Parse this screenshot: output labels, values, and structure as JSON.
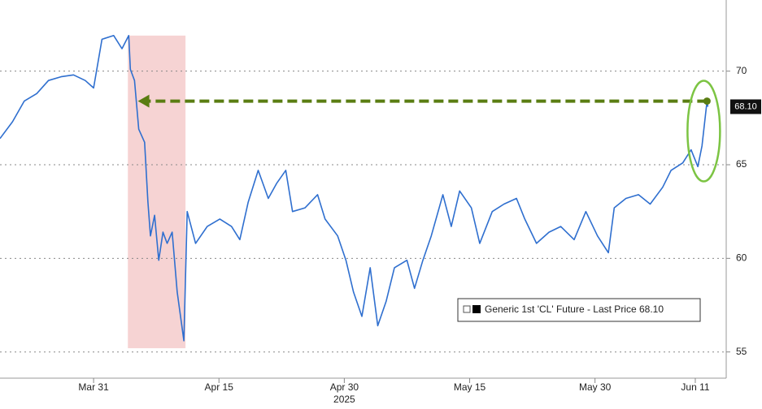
{
  "chart_data": {
    "type": "line",
    "x": [
      -11.2,
      -9.7,
      -8.3,
      -6.8,
      -5.4,
      -3.9,
      -2.4,
      -1.0,
      0,
      1.0,
      2.4,
      3.4,
      4.2,
      4.4,
      4.9,
      5.4,
      6.1,
      6.5,
      6.8,
      7.3,
      7.8,
      8.3,
      8.8,
      9.4,
      10.0,
      10.4,
      10.8,
      11.2,
      12.2,
      13.6,
      15.1,
      16.5,
      17.5,
      18.5,
      19.7,
      20.9,
      21.9,
      23.0,
      23.8,
      25.3,
      26.8,
      27.7,
      29.2,
      30.2,
      31.1,
      32.1,
      33.1,
      34.0,
      35.0,
      36.0,
      37.5,
      38.4,
      39.4,
      40.4,
      41.8,
      42.8,
      43.8,
      45.2,
      46.2,
      47.7,
      49.1,
      50.6,
      51.6,
      53.0,
      54.5,
      55.9,
      57.5,
      58.9,
      60.3,
      61.6,
      62.3,
      63.7,
      65.2,
      66.6,
      68.1,
      69.1,
      70.5,
      71.5,
      72.3,
      72.8,
      73.4,
      73.5
    ],
    "series": [
      {
        "name": "Generic 1st 'CL' Future - Last Price 68.10",
        "color": "#2f6fcf",
        "values": [
          66.4,
          67.3,
          68.4,
          68.8,
          69.5,
          69.7,
          69.8,
          69.5,
          69.1,
          71.7,
          71.9,
          71.2,
          71.9,
          70.1,
          69.5,
          66.9,
          66.2,
          63.0,
          61.2,
          62.3,
          59.9,
          61.4,
          60.8,
          61.4,
          58.2,
          56.9,
          55.6,
          62.5,
          60.8,
          61.7,
          62.1,
          61.7,
          61.0,
          63.0,
          64.7,
          63.2,
          64.0,
          64.7,
          62.5,
          62.7,
          63.4,
          62.1,
          61.2,
          59.9,
          58.2,
          56.9,
          59.5,
          56.4,
          57.7,
          59.5,
          59.9,
          58.4,
          59.9,
          61.2,
          63.4,
          61.7,
          63.6,
          62.7,
          60.8,
          62.5,
          62.9,
          63.2,
          62.1,
          60.8,
          61.4,
          61.7,
          61.0,
          62.5,
          61.2,
          60.3,
          62.7,
          63.2,
          63.4,
          62.9,
          63.8,
          64.7,
          65.1,
          65.8,
          64.9,
          66.0,
          68.4,
          68.1
        ]
      }
    ],
    "last_price": {
      "value": 68.1,
      "label": "68.10"
    },
    "xlim": [
      -11.2,
      75.7
    ],
    "xticks": [
      {
        "value": 0,
        "label": "Mar 31"
      },
      {
        "value": 15,
        "label": "Apr 15"
      },
      {
        "value": 30,
        "label": "Apr 30"
      },
      {
        "value": 45,
        "label": "May 15"
      },
      {
        "value": 60,
        "label": "May 30"
      },
      {
        "value": 72,
        "label": "Jun 11"
      }
    ],
    "x_year_label": "2025",
    "ylim": [
      53.6,
      73.8
    ],
    "yticks": [
      55,
      60,
      65,
      70
    ],
    "grid": true,
    "shade": {
      "x": [
        4.1,
        11.0
      ],
      "y": [
        55.2,
        71.9
      ],
      "color": "#f6d3d3"
    },
    "arrow": {
      "x": [
        73.4,
        5.3
      ],
      "y": 68.4,
      "color": "#5a7d12"
    },
    "highlight_color": "#7cc443"
  }
}
